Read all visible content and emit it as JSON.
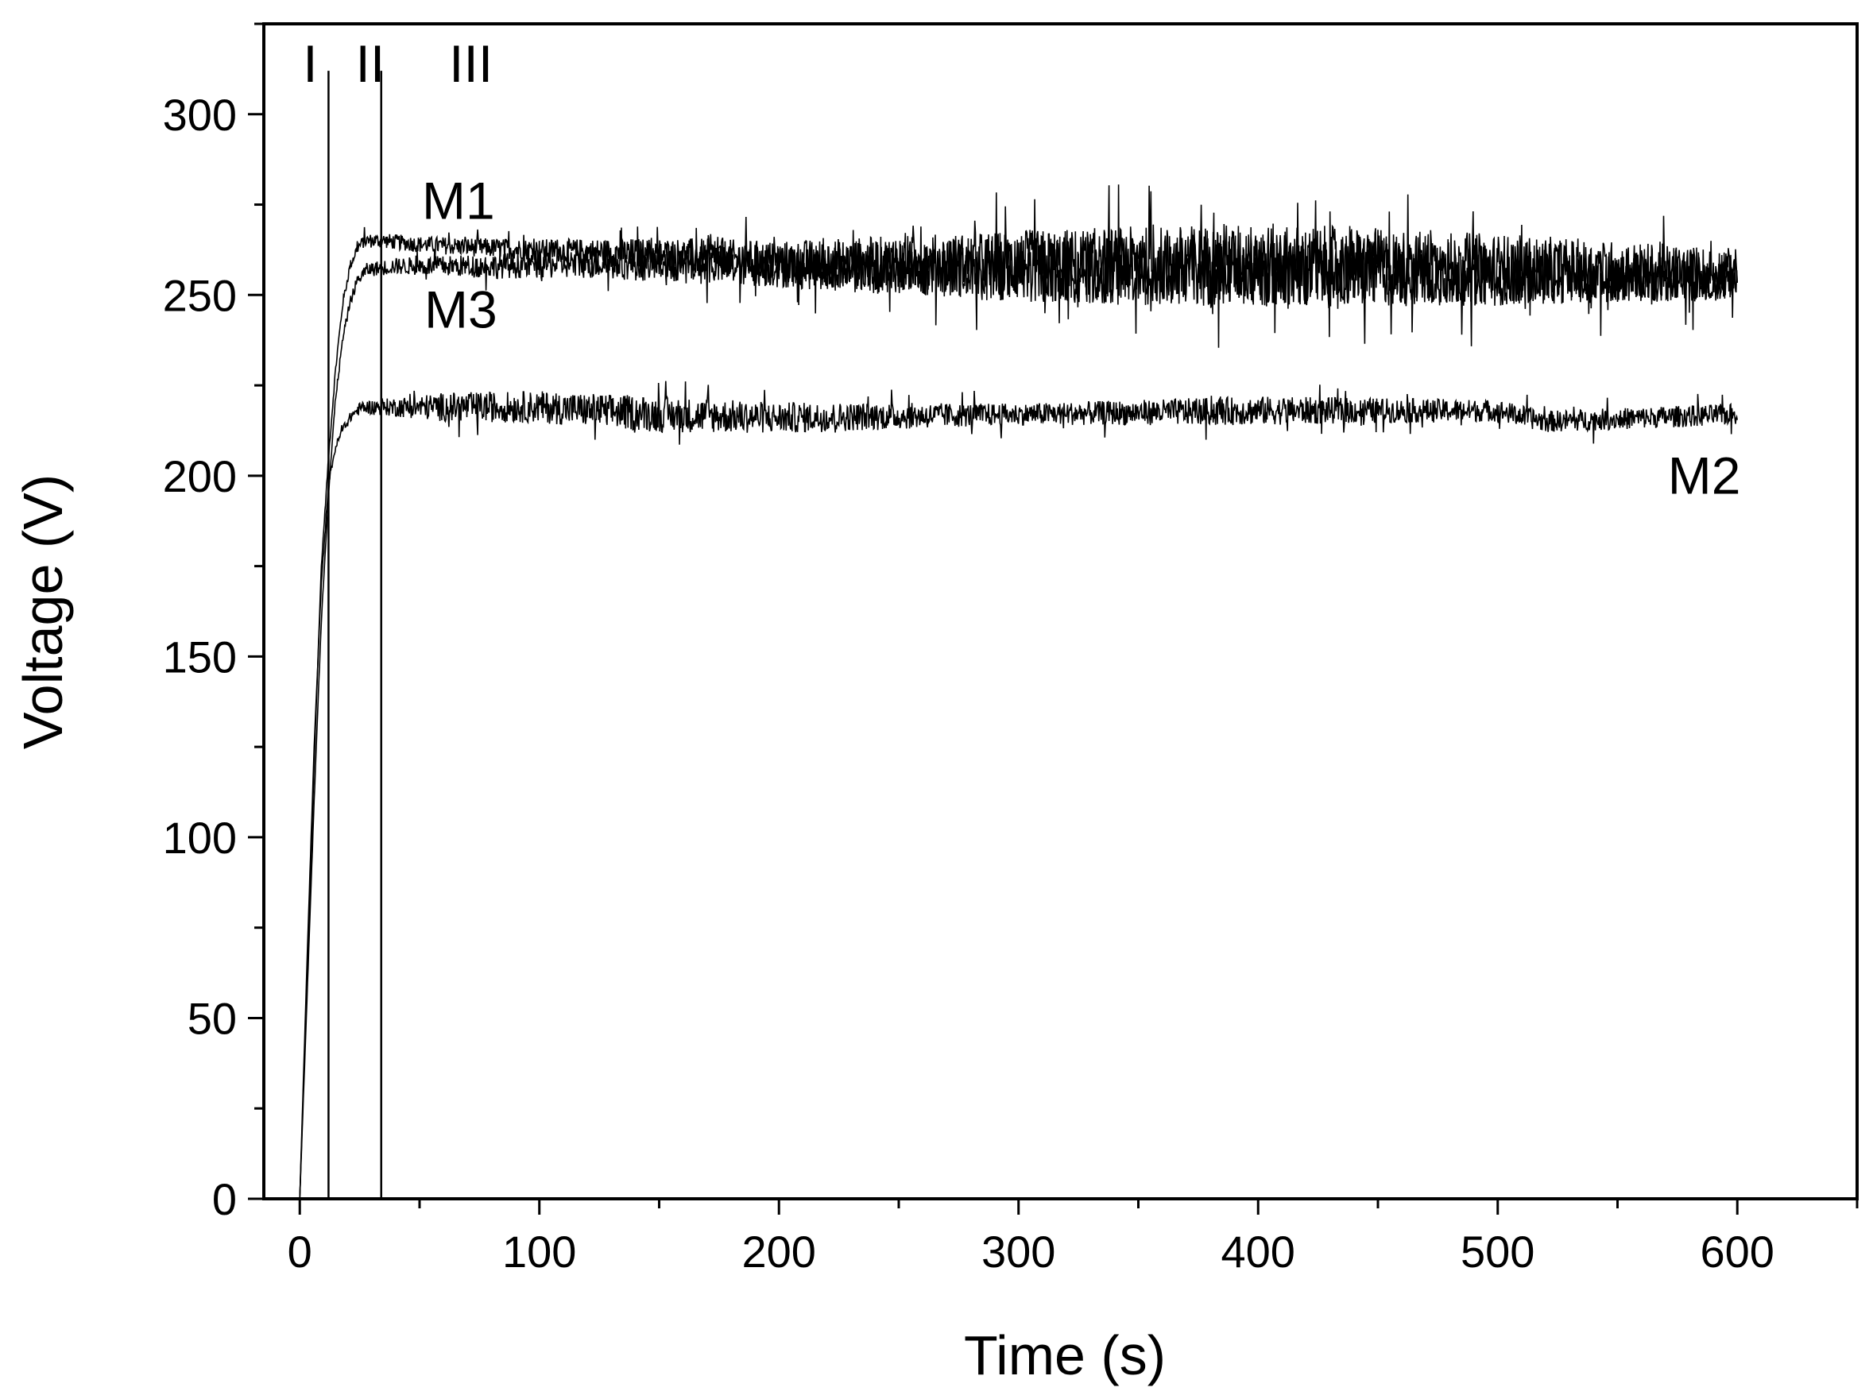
{
  "chart_data": {
    "type": "line",
    "title": "",
    "xlabel": "Time (s)",
    "ylabel": "Voltage (V)",
    "xlim": [
      -15,
      650
    ],
    "ylim": [
      0,
      325
    ],
    "grid": false,
    "x_ticks": [
      0,
      100,
      200,
      300,
      400,
      500,
      600
    ],
    "y_ticks": [
      0,
      50,
      100,
      150,
      200,
      250,
      300
    ],
    "x_tick_labels": [
      "0",
      "100",
      "200",
      "300",
      "400",
      "500",
      "600"
    ],
    "y_tick_labels": [
      "0",
      "50",
      "100",
      "150",
      "200",
      "250",
      "300"
    ],
    "x_minor_step": 50,
    "y_minor_step": 25,
    "stage_boundaries": [
      12,
      34
    ],
    "stage_labels": [
      "I",
      "II",
      "III"
    ],
    "series": [
      {
        "name": "M1",
        "line_color": "#000000",
        "points": [
          [
            0,
            0
          ],
          [
            3,
            60
          ],
          [
            6,
            120
          ],
          [
            9,
            175
          ],
          [
            12,
            205
          ],
          [
            15,
            230
          ],
          [
            18,
            248
          ],
          [
            21,
            258
          ],
          [
            24,
            263
          ],
          [
            27,
            265
          ],
          [
            35,
            265
          ],
          [
            50,
            264
          ],
          [
            80,
            263
          ],
          [
            120,
            262
          ],
          [
            160,
            261
          ],
          [
            200,
            259
          ],
          [
            300,
            258
          ],
          [
            400,
            258
          ],
          [
            500,
            257
          ],
          [
            600,
            256
          ]
        ],
        "noise": [
          [
            0,
            0
          ],
          [
            30,
            2
          ],
          [
            100,
            3
          ],
          [
            200,
            6
          ],
          [
            300,
            10
          ],
          [
            400,
            12
          ],
          [
            500,
            10
          ],
          [
            600,
            7
          ]
        ]
      },
      {
        "name": "M2",
        "line_color": "#000000",
        "points": [
          [
            0,
            0
          ],
          [
            3,
            65
          ],
          [
            6,
            125
          ],
          [
            9,
            170
          ],
          [
            12,
            198
          ],
          [
            15,
            208
          ],
          [
            18,
            213
          ],
          [
            22,
            217
          ],
          [
            26,
            219
          ],
          [
            40,
            219
          ],
          [
            100,
            219
          ],
          [
            150,
            217
          ],
          [
            200,
            216
          ],
          [
            300,
            217
          ],
          [
            400,
            218
          ],
          [
            500,
            218
          ],
          [
            520,
            215
          ],
          [
            560,
            216
          ],
          [
            600,
            217
          ]
        ],
        "noise": [
          [
            0,
            0
          ],
          [
            30,
            2
          ],
          [
            60,
            4
          ],
          [
            150,
            5
          ],
          [
            300,
            3
          ],
          [
            400,
            4
          ],
          [
            500,
            3
          ],
          [
            600,
            3
          ]
        ]
      },
      {
        "name": "M3",
        "line_color": "#000000",
        "points": [
          [
            0,
            0
          ],
          [
            3,
            55
          ],
          [
            6,
            110
          ],
          [
            9,
            160
          ],
          [
            12,
            195
          ],
          [
            15,
            222
          ],
          [
            18,
            238
          ],
          [
            21,
            248
          ],
          [
            24,
            254
          ],
          [
            28,
            257
          ],
          [
            40,
            258
          ],
          [
            80,
            258
          ],
          [
            120,
            259
          ],
          [
            200,
            258
          ],
          [
            300,
            257
          ],
          [
            400,
            257
          ],
          [
            500,
            256
          ],
          [
            600,
            254
          ]
        ],
        "noise": [
          [
            0,
            0
          ],
          [
            30,
            2
          ],
          [
            100,
            4
          ],
          [
            200,
            6
          ],
          [
            300,
            9
          ],
          [
            400,
            10
          ],
          [
            500,
            8
          ],
          [
            600,
            6
          ]
        ]
      }
    ],
    "annotations": [
      {
        "text": "M1",
        "x": 51,
        "y": 271
      },
      {
        "text": "M3",
        "x": 52,
        "y": 241
      },
      {
        "text": "M2",
        "x": 571,
        "y": 195
      }
    ]
  }
}
